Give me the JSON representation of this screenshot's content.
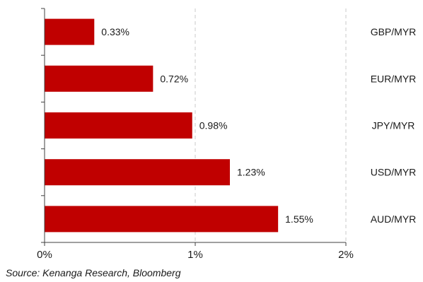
{
  "chart_data": {
    "type": "bar",
    "orientation": "horizontal",
    "categories": [
      "GBP/MYR",
      "EUR/MYR",
      "JPY/MYR",
      "USD/MYR",
      "AUD/MYR"
    ],
    "values": [
      0.33,
      0.72,
      0.98,
      1.23,
      1.55
    ],
    "data_labels": [
      "0.33%",
      "0.72%",
      "0.98%",
      "1.23%",
      "1.55%"
    ],
    "xlim": [
      0,
      2
    ],
    "x_ticks": [
      0,
      1,
      2
    ],
    "x_tick_labels": [
      "0%",
      "1%",
      "2%"
    ],
    "grid": "vertical dashed",
    "legend": "none",
    "category_label_position": "right",
    "bar_color": "#c00000",
    "grid_color": "#c8c8c8",
    "axis_color": "#404040"
  },
  "source": "Source: Kenanga Research, Bloomberg"
}
